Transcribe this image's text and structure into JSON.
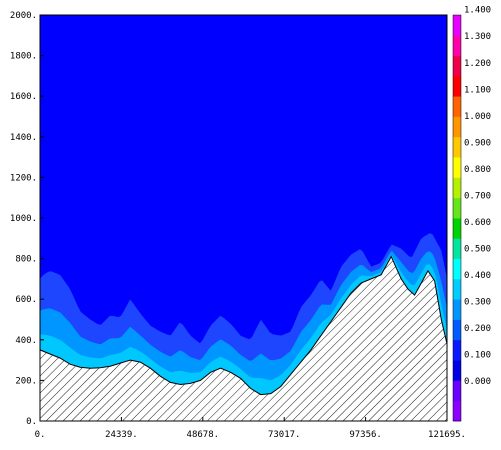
{
  "chart_data": {
    "type": "heatmap",
    "subtype": "filled-contour cross-section with terrain mask",
    "x_ticks": [
      "0.",
      "24339.",
      "48678.",
      "73017.",
      "97356.",
      "121695."
    ],
    "x_tick_values": [
      0,
      24339,
      48678,
      73017,
      97356,
      121695
    ],
    "xlim": [
      0,
      121695
    ],
    "y_ticks": [
      "0.",
      "200.",
      "400.",
      "600.",
      "800.",
      "1000.",
      "1200.",
      "1400.",
      "1600.",
      "1800.",
      "2000."
    ],
    "y_tick_values": [
      0,
      200,
      400,
      600,
      800,
      1000,
      1200,
      1400,
      1600,
      1800,
      2000
    ],
    "ylim": [
      0,
      2000
    ],
    "colorbar": {
      "levels": [
        "0.000",
        "0.100",
        "0.200",
        "0.300",
        "0.400",
        "0.500",
        "0.600",
        "0.700",
        "0.800",
        "0.900",
        "1.000",
        "1.100",
        "1.200",
        "1.300",
        "1.400"
      ],
      "colors": [
        "#8b00ff",
        "#6a00ff",
        "#0000e6",
        "#0a1aff",
        "#005cff",
        "#0096ff",
        "#00ccff",
        "#00ffff",
        "#00e6a0",
        "#00d400",
        "#66e61a",
        "#b4f000",
        "#ffff00",
        "#ffc800",
        "#ff9600",
        "#ff6400",
        "#ff0000",
        "#f0004a",
        "#ff00aa",
        "#e600ff"
      ]
    },
    "field_colors": {
      "background": "#0000ff",
      "band_1": "#1e46ff",
      "band_2": "#0096ff",
      "band_3": "#00c8ff",
      "terrain_fill": "#ffffff",
      "terrain_hatch": "#000000"
    },
    "terrain": {
      "x": [
        0,
        3000,
        6000,
        9000,
        12000,
        15000,
        18000,
        21000,
        24000,
        27000,
        30000,
        33000,
        36000,
        39000,
        42000,
        45000,
        48000,
        51000,
        54000,
        57000,
        60000,
        63000,
        66000,
        69000,
        72000,
        75000,
        78000,
        81000,
        84000,
        87000,
        90000,
        93000,
        96000,
        99000,
        102000,
        105000,
        108000,
        110000,
        112000,
        114000,
        116000,
        118000,
        120000,
        121695
      ],
      "y": [
        350,
        330,
        310,
        280,
        265,
        260,
        262,
        270,
        285,
        300,
        290,
        260,
        220,
        190,
        180,
        185,
        200,
        240,
        260,
        240,
        210,
        160,
        130,
        135,
        170,
        230,
        290,
        350,
        420,
        490,
        560,
        630,
        680,
        700,
        720,
        810,
        700,
        650,
        620,
        680,
        740,
        690,
        500,
        380
      ]
    },
    "contour_top": {
      "x": [
        0,
        1000,
        3000,
        6000,
        9000,
        12000,
        15000,
        18000,
        21000,
        24000,
        27000,
        30000,
        33000,
        36000,
        39000,
        42000,
        45000,
        48000,
        51000,
        54000,
        57000,
        60000,
        63000,
        66000,
        69000,
        72000,
        75000,
        78000,
        81000,
        84000,
        87000,
        90000,
        93000,
        96000,
        99000,
        102000,
        105000,
        108000,
        111000,
        114000,
        117000,
        120000,
        121695
      ],
      "y": [
        700,
        720,
        740,
        720,
        650,
        540,
        500,
        470,
        520,
        510,
        600,
        530,
        470,
        440,
        420,
        490,
        420,
        380,
        470,
        520,
        480,
        420,
        400,
        500,
        430,
        420,
        440,
        560,
        620,
        700,
        640,
        760,
        820,
        850,
        760,
        780,
        870,
        850,
        800,
        900,
        930,
        840,
        700
      ]
    }
  }
}
